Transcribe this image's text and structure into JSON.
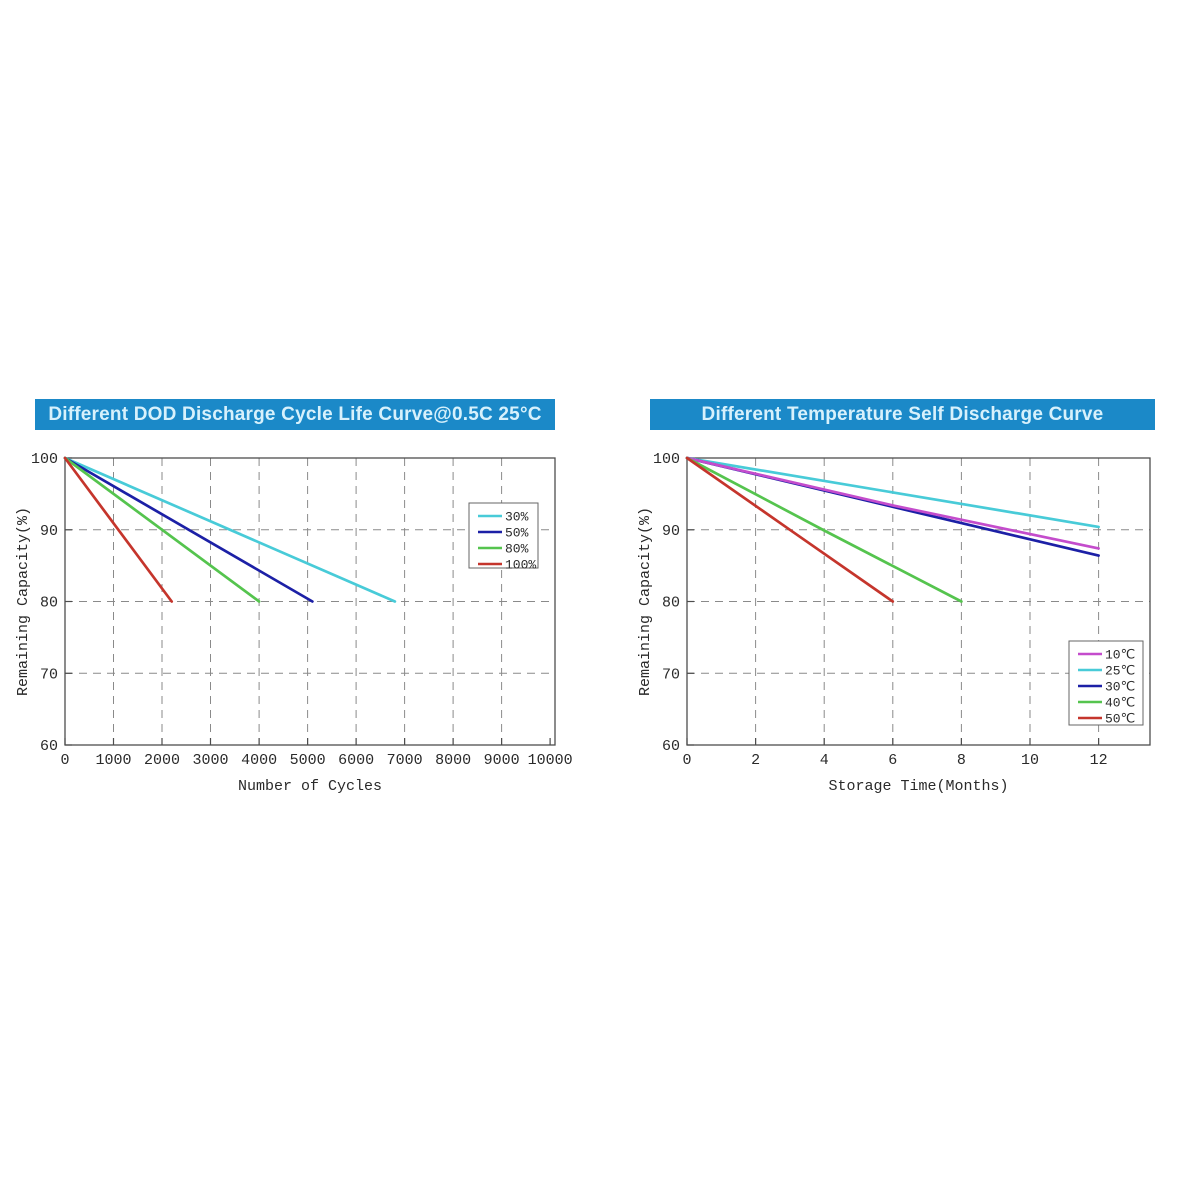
{
  "page": {
    "background": "#ffffff"
  },
  "banner": {
    "bg_color": "#1b89c8",
    "text_color": "#d7f1fc"
  },
  "style": {
    "grid_color": "#8a8a8a",
    "axis_color": "#4d4d4d",
    "tick_label_color": "#2a2a2a",
    "legend_border_color": "#666666",
    "legend_bg_color": "#ffffff"
  },
  "chart_data": [
    {
      "type": "line",
      "title": "Different DOD Discharge Cycle Life Curve@0.5C 25°C",
      "xlabel": "Number of Cycles",
      "ylabel": "Remaining Capacity(%)",
      "xlim": [
        0,
        10100
      ],
      "ylim": [
        60,
        100
      ],
      "xticks": {
        "values": [
          0,
          1000,
          2000,
          3000,
          4000,
          5000,
          6000,
          7000,
          8000,
          9000,
          10000
        ],
        "labels": [
          "0",
          "1000",
          "2000",
          "3000",
          "4000",
          "5000",
          "6000",
          "7000",
          "8000",
          "9000",
          "10000"
        ]
      },
      "yticks": {
        "values": [
          60,
          70,
          80,
          90,
          100
        ],
        "labels": [
          "60",
          "70",
          "80",
          "90",
          "100"
        ]
      },
      "grid": {
        "style": "dashed",
        "x_values": [
          1000,
          2000,
          3000,
          4000,
          5000,
          6000,
          7000,
          8000,
          9000
        ],
        "y_values": [
          70,
          80,
          90
        ]
      },
      "legend": {
        "position": "top-right",
        "labels": [
          "30%",
          "50%",
          "80%",
          "100%"
        ]
      },
      "series": [
        {
          "name": "30%",
          "color": "#48cbd8",
          "points": [
            [
              0,
              100
            ],
            [
              6800,
              80
            ]
          ]
        },
        {
          "name": "50%",
          "color": "#1c20a6",
          "points": [
            [
              0,
              100
            ],
            [
              5100,
              80
            ]
          ]
        },
        {
          "name": "80%",
          "color": "#55c44e",
          "points": [
            [
              0,
              100
            ],
            [
              4000,
              80
            ]
          ]
        },
        {
          "name": "100%",
          "color": "#c5352c",
          "points": [
            [
              0,
              100
            ],
            [
              2200,
              80
            ]
          ]
        }
      ],
      "draw_order": [
        0,
        1,
        2,
        3
      ]
    },
    {
      "type": "line",
      "title": "Different Temperature Self Discharge Curve",
      "xlabel": "Storage Time(Months)",
      "ylabel": "Remaining Capacity(%)",
      "xlim": [
        0,
        13.5
      ],
      "ylim": [
        60,
        100
      ],
      "xticks": {
        "values": [
          0,
          2,
          4,
          6,
          8,
          10,
          12
        ],
        "labels": [
          "0",
          "2",
          "4",
          "6",
          "8",
          "10",
          "12"
        ]
      },
      "yticks": {
        "values": [
          60,
          70,
          80,
          90,
          100
        ],
        "labels": [
          "60",
          "70",
          "80",
          "90",
          "100"
        ]
      },
      "grid": {
        "style": "dashed",
        "x_values": [
          2,
          4,
          6,
          8,
          10,
          12
        ],
        "y_values": [
          70,
          80,
          90
        ]
      },
      "legend": {
        "position": "bottom-right",
        "labels": [
          "10℃",
          "25℃",
          "30℃",
          "40℃",
          "50℃"
        ]
      },
      "series": [
        {
          "name": "10℃",
          "color": "#c44ccc",
          "points": [
            [
              0,
              100
            ],
            [
              6,
              93.4
            ],
            [
              12,
              87.4
            ]
          ]
        },
        {
          "name": "25℃",
          "color": "#48cbd8",
          "points": [
            [
              0,
              100
            ],
            [
              6,
              95.2
            ],
            [
              12,
              90.4
            ]
          ]
        },
        {
          "name": "30℃",
          "color": "#1c20a6",
          "points": [
            [
              0,
              100
            ],
            [
              6,
              93.2
            ],
            [
              12,
              86.4
            ]
          ]
        },
        {
          "name": "40℃",
          "color": "#55c44e",
          "points": [
            [
              0,
              100
            ],
            [
              4,
              89.9
            ],
            [
              8,
              80
            ]
          ]
        },
        {
          "name": "50℃",
          "color": "#c5352c",
          "points": [
            [
              0,
              100
            ],
            [
              3,
              90
            ],
            [
              6,
              80
            ]
          ]
        }
      ],
      "draw_order": [
        1,
        2,
        0,
        3,
        4
      ]
    }
  ]
}
